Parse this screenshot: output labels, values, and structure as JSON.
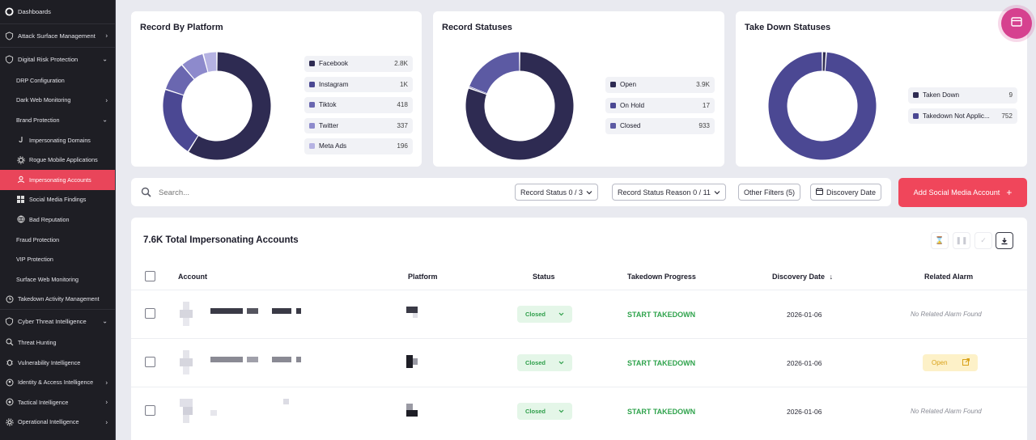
{
  "sidebar": {
    "items": [
      {
        "label": "Dashboards",
        "icon": "logo-icon",
        "chevron": ""
      },
      {
        "label": "Attack Surface Management",
        "icon": "shield-icon",
        "chevron": "›"
      },
      {
        "label": "Digital Risk Protection",
        "icon": "shield-icon",
        "chevron": "⌄"
      },
      {
        "label": "DRP Configuration",
        "icon": "",
        "chevron": ""
      },
      {
        "label": "Dark Web Monitoring",
        "icon": "",
        "chevron": "›"
      },
      {
        "label": "Brand Protection",
        "icon": "",
        "chevron": "⌄"
      },
      {
        "label": "Impersonating Domains",
        "icon": "hook-icon",
        "chevron": ""
      },
      {
        "label": "Rogue Mobile Applications",
        "icon": "gear-icon",
        "chevron": ""
      },
      {
        "label": "Impersonating Accounts",
        "icon": "user-icon",
        "chevron": ""
      },
      {
        "label": "Social Media Findings",
        "icon": "grid-icon",
        "chevron": ""
      },
      {
        "label": "Bad Reputation",
        "icon": "globe-icon",
        "chevron": ""
      },
      {
        "label": "Fraud Protection",
        "icon": "",
        "chevron": ""
      },
      {
        "label": "VIP Protection",
        "icon": "",
        "chevron": ""
      },
      {
        "label": "Surface Web Monitoring",
        "icon": "",
        "chevron": ""
      },
      {
        "label": "Takedown Activity Management",
        "icon": "clock-icon",
        "chevron": ""
      },
      {
        "label": "Cyber Threat Intelligence",
        "icon": "shield-icon",
        "chevron": "⌄"
      },
      {
        "label": "Threat Hunting",
        "icon": "search-icon",
        "chevron": ""
      },
      {
        "label": "Vulnerability Intelligence",
        "icon": "bug-icon",
        "chevron": ""
      },
      {
        "label": "Identity & Access Intelligence",
        "icon": "id-icon",
        "chevron": "›"
      },
      {
        "label": "Tactical Intelligence",
        "icon": "target-icon",
        "chevron": "›"
      },
      {
        "label": "Operational Intelligence",
        "icon": "cog-icon",
        "chevron": "›"
      }
    ]
  },
  "cards": {
    "platform": {
      "title": "Record By Platform",
      "legend": [
        {
          "label": "Facebook",
          "value": "2.8K",
          "color": "#2e2b52"
        },
        {
          "label": "Instagram",
          "value": "1K",
          "color": "#4b4893"
        },
        {
          "label": "Tiktok",
          "value": "418",
          "color": "#6a67b0"
        },
        {
          "label": "Twitter",
          "value": "337",
          "color": "#8d8acc"
        },
        {
          "label": "Meta Ads",
          "value": "196",
          "color": "#b5b2e2"
        }
      ]
    },
    "statuses": {
      "title": "Record Statuses",
      "legend": [
        {
          "label": "Open",
          "value": "3.9K",
          "color": "#2e2b52"
        },
        {
          "label": "On Hold",
          "value": "17",
          "color": "#4b4893"
        },
        {
          "label": "Closed",
          "value": "933",
          "color": "#5c5aa3"
        }
      ]
    },
    "takedown": {
      "title": "Take Down Statuses",
      "legend": [
        {
          "label": "Taken Down",
          "value": "9",
          "color": "#2e2b52"
        },
        {
          "label": "Takedown Not Applic...",
          "value": "752",
          "color": "#4b4893"
        }
      ]
    }
  },
  "filters": {
    "search_placeholder": "Search...",
    "record_status": "Record Status",
    "record_status_count": "0 / 3",
    "record_status_reason": "Record Status Reason",
    "record_status_reason_count": "0 / 11",
    "other_filters": "Other Filters",
    "other_filters_count": "(5)",
    "discovery_date": "Discovery Date",
    "add_button": "Add Social Media Account",
    "add_plus": "+"
  },
  "table": {
    "title": "7.6K Total Impersonating Accounts",
    "headers": {
      "account": "Account",
      "platform": "Platform",
      "status": "Status",
      "progress": "Takedown Progress",
      "discovery": "Discovery Date",
      "alarm": "Related Alarm"
    },
    "rows": [
      {
        "status": "Closed",
        "progress": "START TAKEDOWN",
        "date": "2026-01-06",
        "alarm": "No Related Alarm Found",
        "alarm_type": "none"
      },
      {
        "status": "Closed",
        "progress": "START TAKEDOWN",
        "date": "2026-01-06",
        "alarm": "Open",
        "alarm_type": "open"
      },
      {
        "status": "Closed",
        "progress": "START TAKEDOWN",
        "date": "2026-01-06",
        "alarm": "No Related Alarm Found",
        "alarm_type": "none"
      }
    ]
  },
  "chart_data": [
    {
      "type": "pie",
      "title": "Record By Platform",
      "categories": [
        "Facebook",
        "Instagram",
        "Tiktok",
        "Twitter",
        "Meta Ads"
      ],
      "values": [
        2800,
        1000,
        418,
        337,
        196
      ]
    },
    {
      "type": "pie",
      "title": "Record Statuses",
      "categories": [
        "Open",
        "On Hold",
        "Closed"
      ],
      "values": [
        3900,
        17,
        933
      ]
    },
    {
      "type": "pie",
      "title": "Take Down Statuses",
      "categories": [
        "Taken Down",
        "Takedown Not Applic..."
      ],
      "values": [
        9,
        752
      ]
    }
  ]
}
